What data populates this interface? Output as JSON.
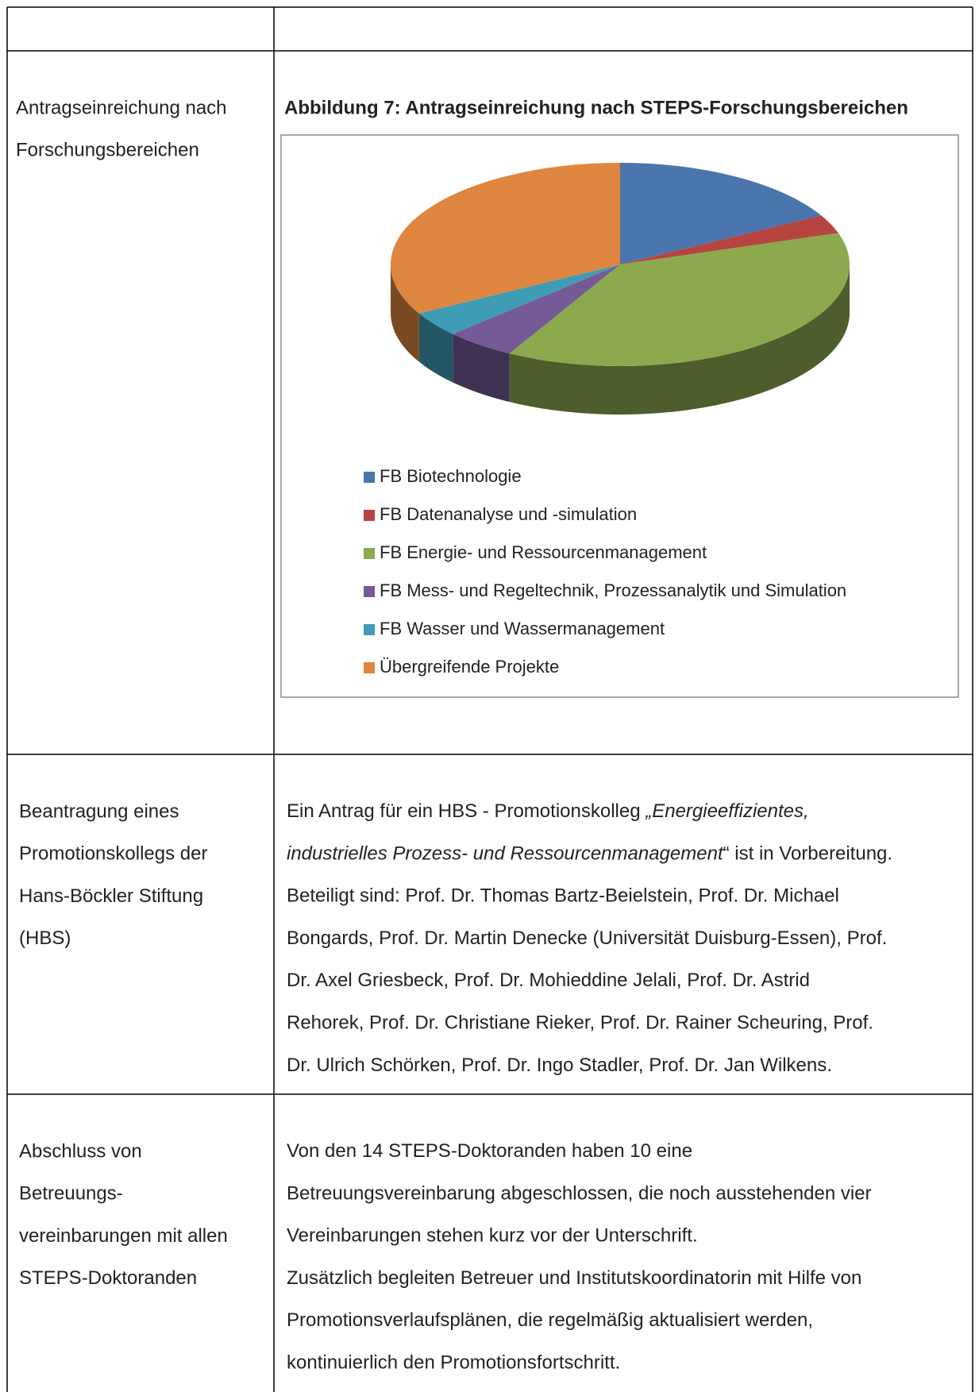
{
  "rows": [
    {
      "label_lines": [
        "Antragseinreichung nach",
        "Forschungsbereichen"
      ],
      "chart_data": {
        "type": "pie",
        "title": "Abbildung 7: Antragseinreichung nach STEPS-Forschungsbereichen",
        "categories": [
          "FB Biotechnologie",
          "FB Datenanalyse und -simulation",
          "FB Energie- und Ressourcenmanagement",
          "FB Mess- und Regeltechnik, Prozessanalytik und Simulation",
          "FB Wasser und Wassermanagement",
          "Übergreifende Projekte"
        ],
        "values": [
          17,
          3,
          38,
          5,
          4,
          33
        ],
        "colors": [
          "#4a76ad",
          "#b64542",
          "#8ca94e",
          "#755a96",
          "#3f9cb5",
          "#de8640"
        ],
        "legend": "bottom"
      }
    },
    {
      "label_lines": [
        "Beantragung eines",
        "Promotionskollegs der",
        "Hans-Böckler Stiftung",
        "(HBS)"
      ],
      "lines": [
        [
          {
            "text": "Ein Antrag für ein HBS - Promotionskolleg "
          },
          {
            "text": "„Energieeffizientes,",
            "italic": true
          }
        ],
        [
          {
            "text": "industrielles Prozess- und Ressourcenmanagement",
            "italic": true
          },
          {
            "text": "“  ist in Vorbereitung."
          }
        ],
        [
          {
            "text": "Beteiligt sind: Prof. Dr. Thomas Bartz-Beielstein, Prof. Dr. Michael"
          }
        ],
        [
          {
            "text": "Bongards, Prof. Dr. Martin Denecke (Universität Duisburg-Essen), Prof."
          }
        ],
        [
          {
            "text": "Dr. Axel Griesbeck, Prof. Dr. Mohieddine Jelali, Prof. Dr. Astrid"
          }
        ],
        [
          {
            "text": "Rehorek, Prof. Dr. Christiane Rieker, Prof. Dr. Rainer Scheuring, Prof."
          }
        ],
        [
          {
            "text": "Dr. Ulrich Schörken, Prof. Dr. Ingo Stadler, Prof. Dr. Jan Wilkens."
          }
        ]
      ]
    },
    {
      "label_lines": [
        "Abschluss von",
        "Betreuungs-",
        "vereinbarungen mit allen",
        "STEPS-Doktoranden"
      ],
      "lines": [
        [
          {
            "text": "Von den 14 STEPS-Doktoranden haben 10 eine"
          }
        ],
        [
          {
            "text": "Betreuungsvereinbarung abgeschlossen, die noch ausstehenden vier"
          }
        ],
        [
          {
            "text": "Vereinbarungen stehen kurz vor der Unterschrift."
          }
        ],
        [
          {
            "text": "Zusätzlich begleiten Betreuer und Institutskoordinatorin mit Hilfe von"
          }
        ],
        [
          {
            "text": "Promotionsverlaufsplänen, die regelmäßig aktualisiert werden,"
          }
        ],
        [
          {
            "text": "kontinuierlich den Promotionsfortschritt."
          }
        ]
      ]
    }
  ]
}
